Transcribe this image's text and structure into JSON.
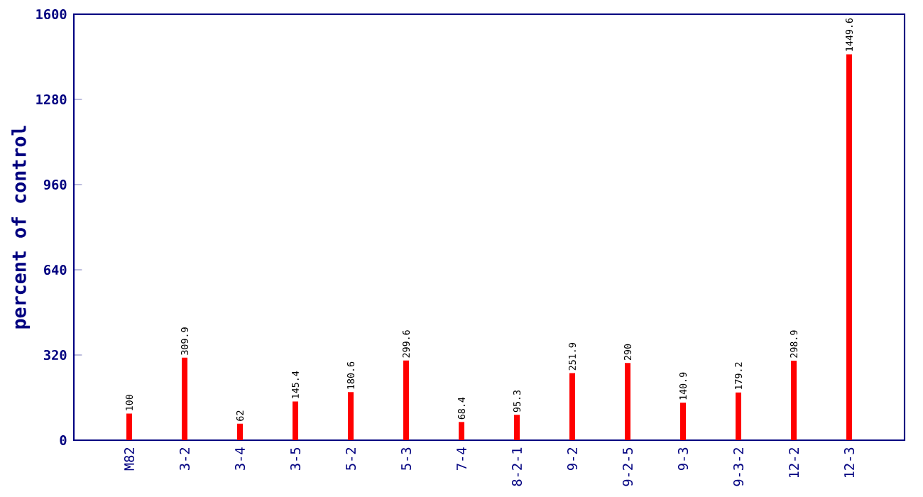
{
  "chart_data": {
    "type": "bar",
    "ylabel": "percent of control",
    "categories": [
      "M82",
      "3-2",
      "3-4",
      "3-5",
      "5-2",
      "5-3",
      "7-4",
      "8-2-1",
      "9-2",
      "9-2-5",
      "9-3",
      "9-3-2",
      "12-2",
      "12-3"
    ],
    "values": [
      100,
      309.9,
      62,
      145.4,
      180.6,
      299.6,
      68.4,
      95.3,
      251.9,
      290,
      140.9,
      179.2,
      298.9,
      1449.6
    ],
    "color": "#ff0000",
    "ylim": [
      0,
      1600
    ],
    "yticks": [
      0,
      320,
      640,
      960,
      1280,
      1600
    ],
    "data_labels": true
  }
}
